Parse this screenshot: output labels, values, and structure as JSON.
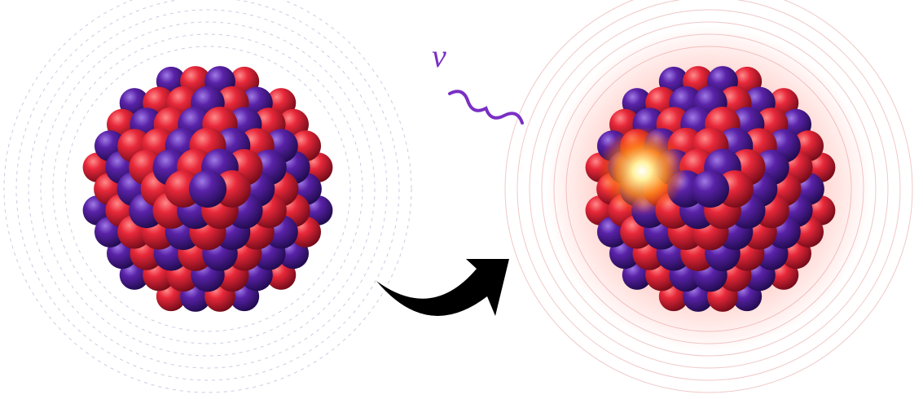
{
  "labels": {
    "neutrino": "ν"
  }
}
